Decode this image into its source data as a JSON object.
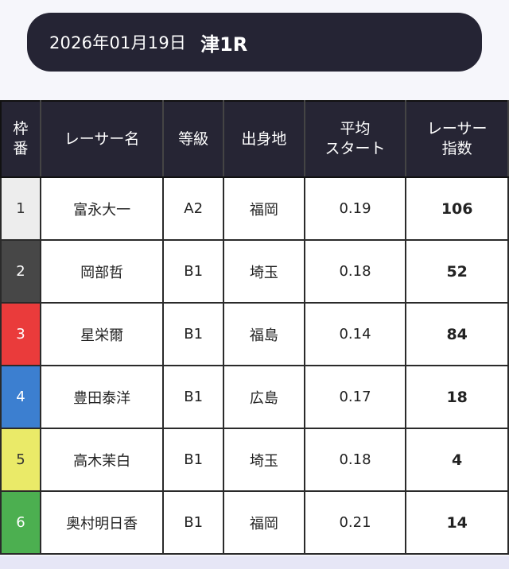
{
  "header": {
    "date": "2026年01月19日",
    "race": "津1R"
  },
  "table": {
    "columns": [
      {
        "key": "frame",
        "label": "枠\n番"
      },
      {
        "key": "name",
        "label": "レーサー名"
      },
      {
        "key": "class",
        "label": "等級"
      },
      {
        "key": "hometown",
        "label": "出身地"
      },
      {
        "key": "avg_start",
        "label": "平均\nスタート"
      },
      {
        "key": "index",
        "label": "レーサー\n指数"
      }
    ],
    "rows": [
      {
        "frame": "1",
        "frame_color": "#ededed",
        "frame_text_color": "#333333",
        "name": "富永大一",
        "class": "A2",
        "hometown": "福岡",
        "avg_start": "0.19",
        "index": "106"
      },
      {
        "frame": "2",
        "frame_color": "#474747",
        "frame_text_color": "#ffffff",
        "name": "岡部哲",
        "class": "B1",
        "hometown": "埼玉",
        "avg_start": "0.18",
        "index": "52"
      },
      {
        "frame": "3",
        "frame_color": "#ea3b3b",
        "frame_text_color": "#ffffff",
        "name": "星栄爾",
        "class": "B1",
        "hometown": "福島",
        "avg_start": "0.14",
        "index": "84"
      },
      {
        "frame": "4",
        "frame_color": "#3c7fd0",
        "frame_text_color": "#ffffff",
        "name": "豊田泰洋",
        "class": "B1",
        "hometown": "広島",
        "avg_start": "0.17",
        "index": "18"
      },
      {
        "frame": "5",
        "frame_color": "#eaea68",
        "frame_text_color": "#333333",
        "name": "高木茉白",
        "class": "B1",
        "hometown": "埼玉",
        "avg_start": "0.18",
        "index": "4"
      },
      {
        "frame": "6",
        "frame_color": "#4caf50",
        "frame_text_color": "#ffffff",
        "name": "奥村明日香",
        "class": "B1",
        "hometown": "福岡",
        "avg_start": "0.21",
        "index": "14"
      }
    ]
  }
}
